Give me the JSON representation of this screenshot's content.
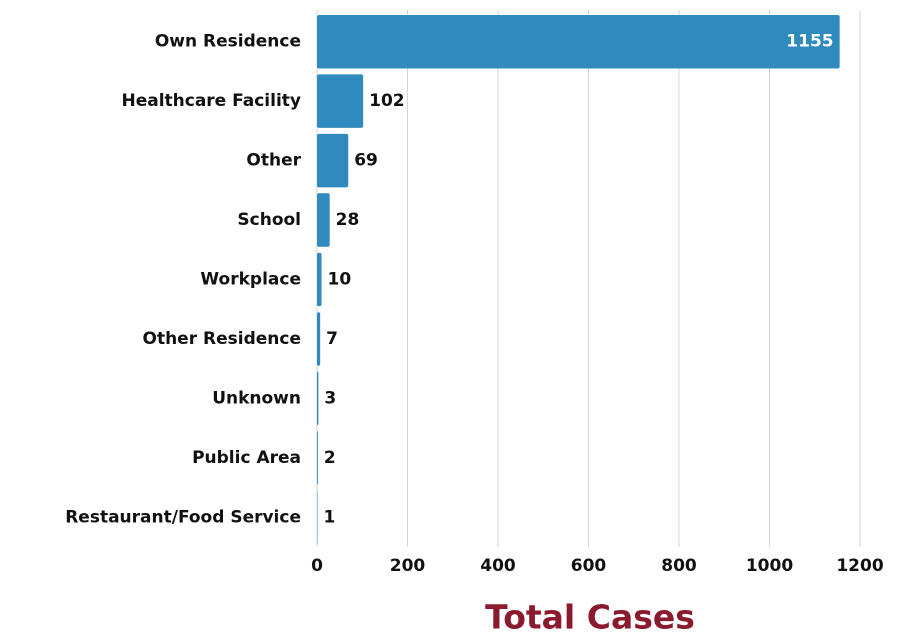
{
  "chart_data": {
    "type": "bar",
    "orientation": "horizontal",
    "xlabel": "Total Cases",
    "categories": [
      "Own Residence",
      "Healthcare Facility",
      "Other",
      "School",
      "Workplace",
      "Other Residence",
      "Unknown",
      "Public Area",
      "Restaurant/Food Service"
    ],
    "values": [
      1155,
      102,
      69,
      28,
      10,
      7,
      3,
      2,
      1
    ],
    "color": "#2f8bbd",
    "xlim": [
      0,
      1200
    ],
    "xticks": [
      0,
      200,
      400,
      600,
      800,
      1000,
      1200
    ],
    "grid": true
  }
}
